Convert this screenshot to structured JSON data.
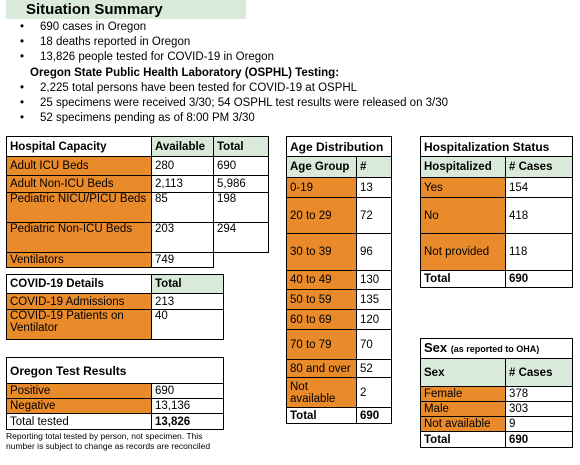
{
  "summary": {
    "title": "Situation Summary",
    "bullets": [
      "690 cases in Oregon",
      "18 deaths reported in Oregon",
      "13,826 people tested for COVID-19 in Oregon"
    ],
    "osphl_heading": "Oregon State Public Health Laboratory (OSPHL) Testing:",
    "osphl_bullets": [
      "2,225 total persons have been tested for COVID-19 at OSPHL",
      "25 specimens were received 3/30; 54 OSPHL test results were released on 3/30",
      "52 specimens pending as of 8:00 PM 3/30"
    ]
  },
  "hospital_capacity": {
    "headers": [
      "Hospital Capacity",
      "Available",
      "Total"
    ],
    "rows": [
      [
        "Adult ICU Beds",
        "280",
        "690"
      ],
      [
        "Adult Non-ICU Beds",
        "2,113",
        "5,986"
      ],
      [
        "Pediatric NICU/PICU Beds",
        "85",
        "198"
      ],
      [
        "Pediatric Non-ICU Beds",
        "203",
        "294"
      ],
      [
        "Ventilators",
        "749",
        ""
      ]
    ]
  },
  "covid_details": {
    "headers": [
      "COVID-19 Details",
      "Total"
    ],
    "rows": [
      [
        "COVID-19 Admissions",
        "213"
      ],
      [
        "COVID-19 Patients on Ventilator",
        "40"
      ]
    ]
  },
  "test_results": {
    "title": "Oregon Test Results",
    "rows": [
      [
        "Positive",
        "690"
      ],
      [
        "Negative",
        "13,136"
      ],
      [
        "Total tested",
        "13,826"
      ]
    ],
    "note": "Reporting total tested by person, not specimen. This number is subject to change as records are reconciled"
  },
  "age_distribution": {
    "title": "Age Distribution",
    "headers": [
      "Age Group",
      "#"
    ],
    "rows": [
      [
        "0-19",
        "13"
      ],
      [
        "20 to 29",
        "72"
      ],
      [
        "30 to 39",
        "96"
      ],
      [
        "40 to 49",
        "130"
      ],
      [
        "50 to 59",
        "135"
      ],
      [
        "60 to 69",
        "120"
      ],
      [
        "70 to 79",
        "70"
      ],
      [
        "80 and over",
        "52"
      ],
      [
        "Not available",
        "2"
      ]
    ],
    "total_label": "Total",
    "total_value": "690"
  },
  "hospitalization": {
    "title": "Hospitalization Status",
    "headers": [
      "Hospitalized",
      "# Cases"
    ],
    "rows": [
      [
        "Yes",
        "154"
      ],
      [
        "No",
        "418"
      ],
      [
        "Not provided",
        "118"
      ]
    ],
    "total_label": "Total",
    "total_value": "690"
  },
  "sex": {
    "title": "Sex",
    "title_note": "(as reported to OHA)",
    "headers": [
      "Sex",
      "# Cases"
    ],
    "rows": [
      [
        "Female",
        "378"
      ],
      [
        "Male",
        "303"
      ],
      [
        "Not available",
        "9"
      ]
    ],
    "total_label": "Total",
    "total_value": "690"
  },
  "colors": {
    "orange": "#e98a2b",
    "header_green": "#d9eadb"
  }
}
